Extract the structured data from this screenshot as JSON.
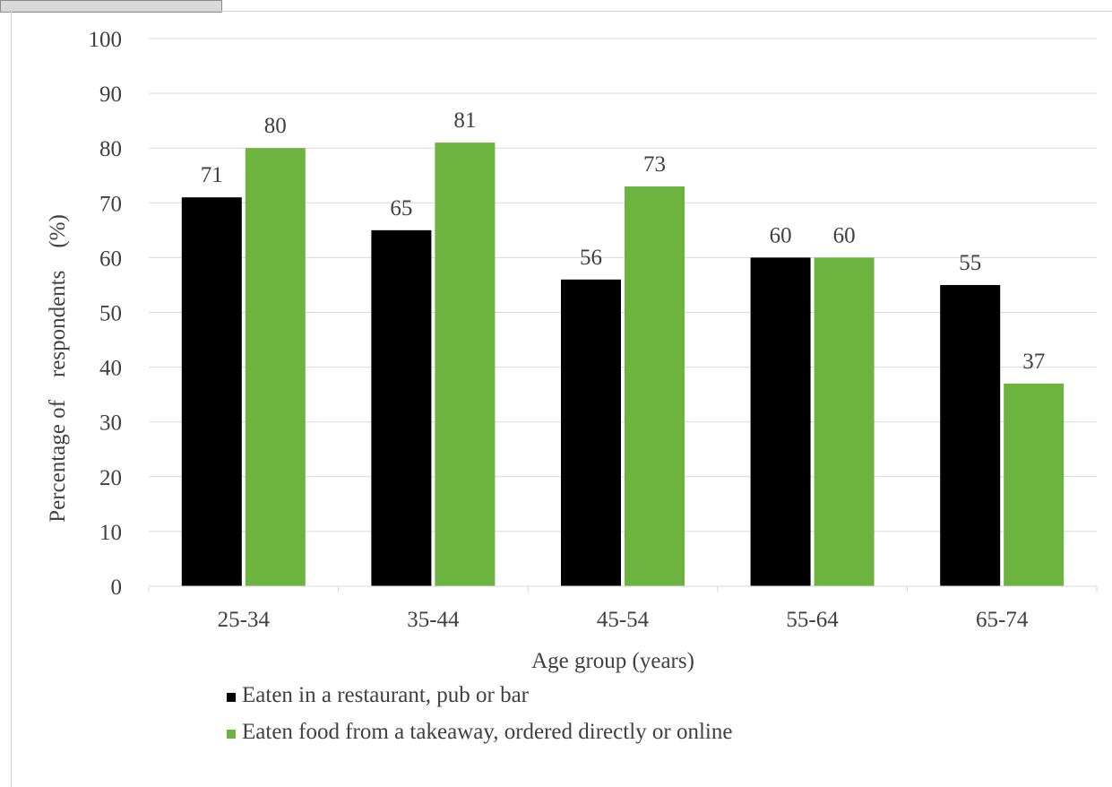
{
  "chart_data": {
    "type": "bar",
    "title": "",
    "xlabel": "Age group (years)",
    "ylabel": "Percentage of    respondents    (%)",
    "ylim": [
      0,
      100
    ],
    "yticks": [
      0,
      10,
      20,
      30,
      40,
      50,
      60,
      70,
      80,
      90,
      100
    ],
    "grid": true,
    "legend_position": "bottom",
    "categories": [
      "25-34",
      "35-44",
      "45-54",
      "55-64",
      "65-74"
    ],
    "series": [
      {
        "name": "Eaten in a restaurant, pub or bar",
        "color": "#000000",
        "values": [
          71,
          65,
          56,
          60,
          55
        ]
      },
      {
        "name": "Eaten food from a takeaway, ordered directly or online",
        "color": "#6db33f",
        "values": [
          80,
          81,
          73,
          60,
          37
        ]
      }
    ]
  }
}
